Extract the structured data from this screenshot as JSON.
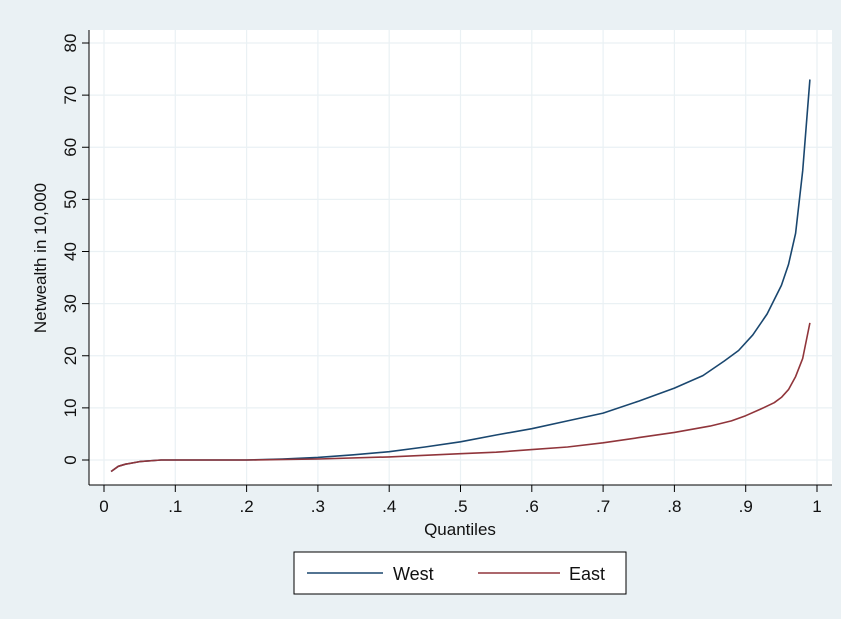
{
  "chart_data": {
    "type": "line",
    "title": "",
    "xlabel": "Quantiles",
    "ylabel": "Netwealth in 10,000",
    "xlim": [
      0,
      1
    ],
    "ylim": [
      -5,
      82
    ],
    "x_ticks": [
      0,
      0.1,
      0.2,
      0.3,
      0.4,
      0.5,
      0.6,
      0.7,
      0.8,
      0.9,
      1
    ],
    "x_tick_labels": [
      "0",
      ".1",
      ".2",
      ".3",
      ".4",
      ".5",
      ".6",
      ".7",
      ".8",
      ".9",
      "1"
    ],
    "y_ticks": [
      0,
      10,
      20,
      30,
      40,
      50,
      60,
      70,
      80
    ],
    "y_tick_labels": [
      "0",
      "10",
      "20",
      "30",
      "40",
      "50",
      "60",
      "70",
      "80"
    ],
    "grid": true,
    "legend_position": "bottom",
    "series": [
      {
        "name": "West",
        "color": "#1a476f",
        "x": [
          0.01,
          0.02,
          0.03,
          0.05,
          0.08,
          0.1,
          0.15,
          0.2,
          0.25,
          0.3,
          0.35,
          0.4,
          0.45,
          0.5,
          0.55,
          0.6,
          0.65,
          0.7,
          0.75,
          0.8,
          0.84,
          0.87,
          0.89,
          0.91,
          0.93,
          0.95,
          0.96,
          0.97,
          0.98,
          0.99
        ],
        "values": [
          -2.2,
          -1.2,
          -0.8,
          -0.3,
          0,
          0,
          0,
          0,
          0.2,
          0.5,
          1.0,
          1.6,
          2.5,
          3.5,
          4.8,
          6.0,
          7.5,
          9.0,
          11.3,
          13.8,
          16.2,
          19.0,
          21.0,
          24.0,
          28.0,
          33.5,
          37.5,
          43.5,
          55.5,
          73.0
        ]
      },
      {
        "name": "East",
        "color": "#90353b",
        "x": [
          0.01,
          0.02,
          0.03,
          0.05,
          0.08,
          0.1,
          0.2,
          0.3,
          0.4,
          0.5,
          0.55,
          0.6,
          0.65,
          0.7,
          0.75,
          0.8,
          0.85,
          0.88,
          0.9,
          0.92,
          0.94,
          0.95,
          0.96,
          0.97,
          0.98,
          0.99
        ],
        "values": [
          -2.2,
          -1.2,
          -0.8,
          -0.3,
          0,
          0,
          0,
          0.2,
          0.6,
          1.2,
          1.5,
          2.0,
          2.5,
          3.3,
          4.3,
          5.3,
          6.5,
          7.5,
          8.5,
          9.7,
          11.0,
          12.0,
          13.5,
          16.0,
          19.5,
          26.3
        ]
      }
    ]
  }
}
